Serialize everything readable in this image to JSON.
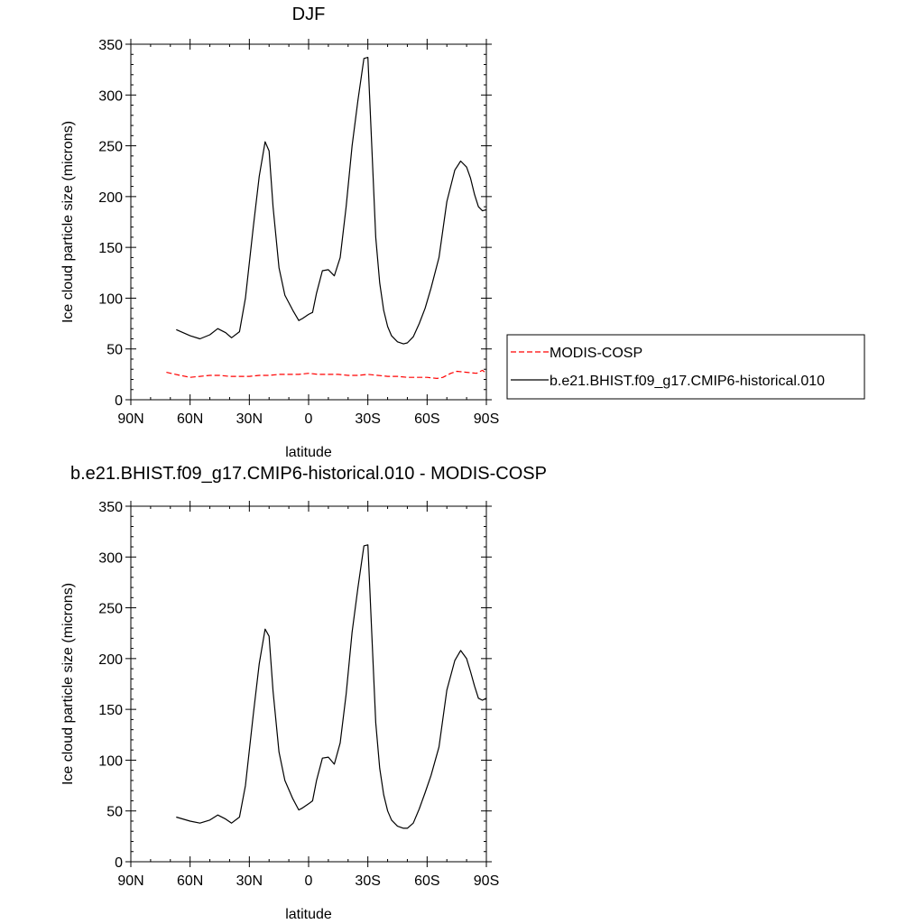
{
  "chart_data": [
    {
      "type": "line",
      "title": "DJF",
      "xlabel": "latitude",
      "ylabel": "Ice cloud particle size (microns)",
      "xlim": [
        -90,
        90
      ],
      "ylim": [
        0,
        350
      ],
      "x_ticks": [
        -90,
        -60,
        -30,
        0,
        30,
        60,
        90
      ],
      "x_tick_labels": [
        "90N",
        "60N",
        "30N",
        "0",
        "30S",
        "60S",
        "90S"
      ],
      "y_ticks": [
        0,
        50,
        100,
        150,
        200,
        250,
        300,
        350
      ],
      "y_tick_labels": [
        "0",
        "50",
        "100",
        "150",
        "200",
        "250",
        "300",
        "350"
      ],
      "legend": {
        "placement": "right",
        "entries": [
          {
            "label": "MODIS-COSP",
            "color": "#ff0000",
            "dash": "dashed"
          },
          {
            "label": "b.e21.BHIST.f09_g17.CMIP6-historical.010",
            "color": "#000000",
            "dash": "solid"
          }
        ]
      },
      "series": [
        {
          "name": "MODIS-COSP",
          "color": "#ff0000",
          "dash": "dashed",
          "x": [
            -72,
            -65,
            -60,
            -55,
            -50,
            -45,
            -40,
            -35,
            -30,
            -25,
            -20,
            -15,
            -10,
            -5,
            0,
            5,
            10,
            15,
            20,
            25,
            30,
            35,
            40,
            45,
            50,
            55,
            60,
            65,
            68,
            72,
            75,
            80,
            85,
            88,
            90
          ],
          "y": [
            27,
            24,
            22,
            23,
            24,
            24,
            23,
            23,
            23,
            24,
            24,
            25,
            25,
            25,
            26,
            25,
            25,
            25,
            24,
            24,
            25,
            24,
            23,
            23,
            22,
            22,
            22,
            21,
            22,
            26,
            28,
            27,
            26,
            29,
            26
          ]
        },
        {
          "name": "b.e21.BHIST.f09_g17.CMIP6-historical.010",
          "color": "#000000",
          "dash": "solid",
          "x": [
            -67,
            -60,
            -55,
            -50,
            -46,
            -42,
            -39,
            -35,
            -32,
            -28,
            -25,
            -22,
            -20,
            -18,
            -15,
            -12,
            -8,
            -5,
            -3,
            0,
            2,
            4,
            7,
            10,
            13,
            16,
            19,
            22,
            25,
            28,
            30,
            32,
            34,
            36,
            38,
            40,
            42,
            45,
            48,
            50,
            53,
            56,
            59,
            62,
            66,
            70,
            74,
            77,
            80,
            82,
            84,
            86,
            88,
            90
          ],
          "y": [
            69,
            63,
            60,
            64,
            70,
            66,
            61,
            67,
            100,
            170,
            220,
            254,
            245,
            190,
            130,
            103,
            88,
            78,
            80,
            84,
            86,
            105,
            127,
            128,
            122,
            140,
            190,
            250,
            295,
            336,
            337,
            250,
            160,
            115,
            88,
            72,
            63,
            57,
            55,
            56,
            62,
            75,
            90,
            110,
            140,
            195,
            226,
            235,
            229,
            218,
            202,
            190,
            186,
            187
          ]
        }
      ]
    },
    {
      "type": "line",
      "title": "b.e21.BHIST.f09_g17.CMIP6-historical.010 - MODIS-COSP",
      "xlabel": "latitude",
      "ylabel": "Ice cloud particle size (microns)",
      "xlim": [
        -90,
        90
      ],
      "ylim": [
        0,
        350
      ],
      "x_ticks": [
        -90,
        -60,
        -30,
        0,
        30,
        60,
        90
      ],
      "x_tick_labels": [
        "90N",
        "60N",
        "30N",
        "0",
        "30S",
        "60S",
        "90S"
      ],
      "y_ticks": [
        0,
        50,
        100,
        150,
        200,
        250,
        300,
        350
      ],
      "y_tick_labels": [
        "0",
        "50",
        "100",
        "150",
        "200",
        "250",
        "300",
        "350"
      ],
      "series": [
        {
          "color": "#000000",
          "dash": "solid",
          "x": [
            -67,
            -60,
            -55,
            -50,
            -46,
            -42,
            -39,
            -35,
            -32,
            -28,
            -25,
            -22,
            -20,
            -18,
            -15,
            -12,
            -8,
            -5,
            -3,
            0,
            2,
            4,
            7,
            10,
            13,
            16,
            19,
            22,
            25,
            28,
            30,
            32,
            34,
            36,
            38,
            40,
            42,
            45,
            48,
            50,
            53,
            56,
            59,
            62,
            66,
            70,
            74,
            77,
            80,
            82,
            84,
            86,
            88,
            90
          ],
          "y": [
            44,
            40,
            38,
            41,
            46,
            42,
            38,
            44,
            75,
            145,
            195,
            229,
            222,
            168,
            108,
            80,
            62,
            51,
            53,
            57,
            60,
            80,
            102,
            103,
            96,
            117,
            165,
            226,
            270,
            311,
            312,
            225,
            137,
            92,
            66,
            50,
            41,
            35,
            33,
            33,
            38,
            52,
            68,
            85,
            113,
            169,
            198,
            208,
            200,
            187,
            173,
            161,
            159,
            161
          ]
        }
      ]
    }
  ]
}
